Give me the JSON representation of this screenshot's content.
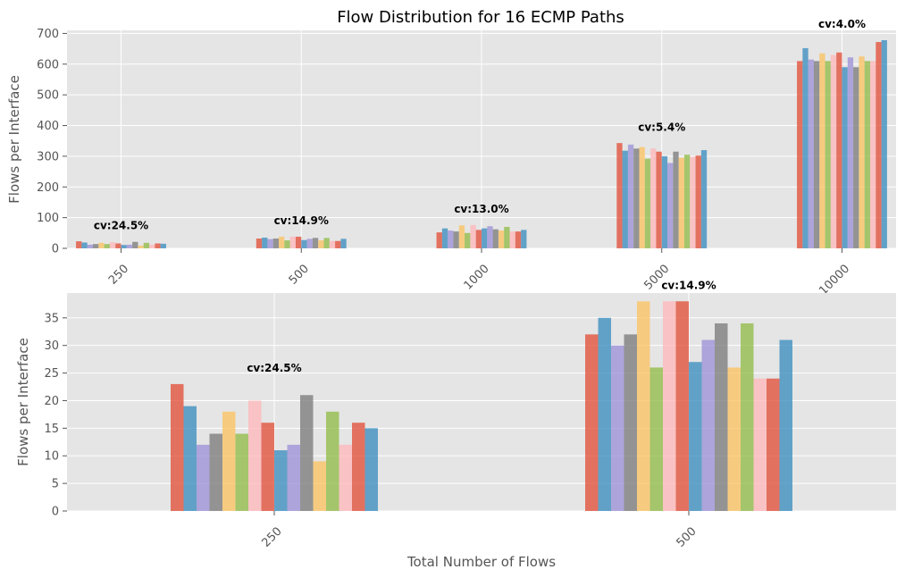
{
  "title": "Flow Distribution for 16 ECMP Paths",
  "colors": [
    "#E24A33",
    "#348ABD",
    "#988ED5",
    "#777777",
    "#FBC15E",
    "#8EBA42",
    "#FFB5B8"
  ],
  "chart_data": [
    {
      "type": "bar",
      "title": "Flow Distribution for 16 ECMP Paths",
      "xlabel": "",
      "ylabel": "Flows per Interface",
      "categories": [
        "250",
        "500",
        "1000",
        "5000",
        "10000"
      ],
      "ylim": [
        0,
        710
      ],
      "yticks": [
        0,
        100,
        200,
        300,
        400,
        500,
        600,
        700
      ],
      "grid": true,
      "annotations": [
        "cv:24.5%",
        "cv:14.9%",
        "cv:13.0%",
        "cv:5.4%",
        "cv:4.0%"
      ],
      "values": [
        [
          23,
          19,
          12,
          14,
          18,
          14,
          20,
          16,
          11,
          12,
          21,
          9,
          18,
          12,
          16,
          15
        ],
        [
          32,
          35,
          30,
          32,
          38,
          26,
          38,
          38,
          27,
          31,
          34,
          26,
          34,
          24,
          24,
          31
        ],
        [
          52,
          65,
          58,
          55,
          75,
          50,
          76,
          60,
          65,
          72,
          62,
          58,
          70,
          55,
          55,
          60
        ],
        [
          343,
          318,
          338,
          325,
          330,
          292,
          325,
          315,
          300,
          278,
          315,
          295,
          305,
          298,
          302,
          320
        ],
        [
          610,
          652,
          615,
          610,
          635,
          610,
          630,
          638,
          590,
          622,
          590,
          625,
          610,
          610,
          672,
          678
        ]
      ]
    },
    {
      "type": "bar",
      "title": "",
      "xlabel": "Total Number of Flows",
      "ylabel": "Flows per Interface",
      "categories": [
        "250",
        "500"
      ],
      "ylim": [
        0,
        39.5
      ],
      "yticks": [
        0,
        5,
        10,
        15,
        20,
        25,
        30,
        35
      ],
      "grid": true,
      "annotations": [
        "cv:24.5%",
        "cv:14.9%"
      ],
      "values": [
        [
          23,
          19,
          12,
          14,
          18,
          14,
          20,
          16,
          11,
          12,
          21,
          9,
          18,
          12,
          16,
          15
        ],
        [
          32,
          35,
          30,
          32,
          38,
          26,
          38,
          38,
          27,
          31,
          34,
          26,
          34,
          24,
          24,
          31
        ]
      ]
    }
  ]
}
